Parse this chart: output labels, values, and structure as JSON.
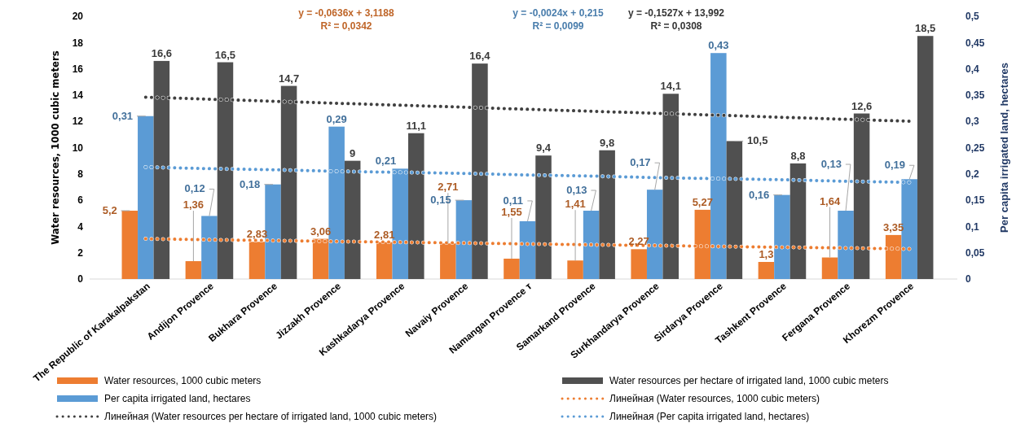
{
  "chart_data": {
    "type": "bar",
    "ylabel": "Water resources, 1000 cubic meters",
    "y2label": "Per capita irrigated land, hectares",
    "categories": [
      "The Republic of Karakalpakstan",
      "Andijon Provence",
      "Bukhara Provence",
      "Jizzakh Provence",
      "Kashkadarya Provence",
      "Navaiy Provence",
      "Namangan Provence т",
      "Samarkand Provence",
      "Surkhandarya Provence",
      "Sirdarya Provence",
      "Tashkent Provence",
      "Fergana Provence",
      "Khorezm Provence"
    ],
    "series": [
      {
        "name": "Water resources, 1000 cubic meters",
        "color": "#ed7d31",
        "values": [
          5.2,
          1.36,
          2.83,
          3.06,
          2.81,
          2.71,
          1.55,
          1.41,
          2.27,
          5.27,
          1.3,
          1.64,
          3.35
        ],
        "value_labels": [
          "5,2",
          "1,36",
          "2,83",
          "3,06",
          "2,81",
          "2,71",
          "1,55",
          "1,41",
          "2,27",
          "5,27",
          "1,3",
          "1,64",
          "3,35"
        ]
      },
      {
        "name": "Per capita irrigated land, hectares",
        "color": "#5b9bd5",
        "axis": "y2",
        "values": [
          0.31,
          0.12,
          0.18,
          0.29,
          0.21,
          0.15,
          0.11,
          0.13,
          0.17,
          0.43,
          0.16,
          0.13,
          0.19
        ],
        "value_labels": [
          "0,31",
          "0,12",
          "0,18",
          "0,29",
          "0,21",
          "0,15",
          "0,11",
          "0,13",
          "0,17",
          "0,43",
          "0,16",
          "0,13",
          "0,19"
        ]
      },
      {
        "name": "Water resources per hectare of irrigated land, 1000 cubic meters",
        "color": "#505050",
        "values": [
          16.6,
          16.5,
          14.7,
          9,
          11.1,
          16.4,
          9.4,
          9.8,
          14.1,
          10.5,
          8.8,
          12.6,
          18.5
        ],
        "value_labels": [
          "16,6",
          "16,5",
          "14,7",
          "9",
          "11,1",
          "16,4",
          "9,4",
          "9,8",
          "14,1",
          "10,5",
          "8,8",
          "12,6",
          "18,5"
        ]
      },
      {
        "name": "Линейная (Water resources, 1000 cubic meters)",
        "type": "line",
        "line_style": "dotted",
        "marker": "none",
        "color": "#ed7d31",
        "values": [
          3.06,
          2.99,
          2.93,
          2.86,
          2.8,
          2.74,
          2.67,
          2.61,
          2.55,
          2.48,
          2.42,
          2.36,
          2.29
        ]
      },
      {
        "name": "Линейная (Water resources per hectare of irrigated land, 1000 cubic meters)",
        "type": "line",
        "line_style": "dotted",
        "marker": "none",
        "color": "#404040",
        "values": [
          13.84,
          13.69,
          13.53,
          13.38,
          13.23,
          13.08,
          12.92,
          12.77,
          12.62,
          12.47,
          12.31,
          12.16,
          12.01
        ]
      },
      {
        "name": "Линейная (Per capita irrigated land, hectares)",
        "type": "line",
        "line_style": "dotted",
        "marker": "none",
        "color": "#5b9bd5",
        "axis": "y2",
        "values": [
          0.213,
          0.21,
          0.208,
          0.205,
          0.203,
          0.201,
          0.198,
          0.196,
          0.193,
          0.191,
          0.189,
          0.186,
          0.184
        ]
      }
    ],
    "ylim": [
      0,
      20
    ],
    "yticks": [
      0,
      2,
      4,
      6,
      8,
      10,
      12,
      14,
      16,
      18,
      20
    ],
    "y2lim": [
      0,
      0.5
    ],
    "y2ticks": [
      0,
      {
        "value": 0.05,
        "label": "0,05"
      },
      {
        "value": 0.1,
        "label": "0,1"
      },
      {
        "value": 0.15,
        "label": "0,15"
      },
      {
        "value": 0.2,
        "label": "0,2"
      },
      {
        "value": 0.25,
        "label": "0,25"
      },
      {
        "value": 0.3,
        "label": "0,3"
      },
      {
        "value": 0.35,
        "label": "0,35"
      },
      {
        "value": 0.4,
        "label": "0,4"
      },
      {
        "value": 0.45,
        "label": "0,45"
      },
      {
        "value": 0.5,
        "label": "0,5"
      }
    ],
    "annotations": [
      "y = -0,0636x + 3,1188\nR² = 0,0342",
      "y = -0,0024x + 0,215\nR² = 0,0099",
      "y = -0,1527x + 13,992\nR² = 0,0308"
    ],
    "legend": "bottom",
    "grid": false
  }
}
